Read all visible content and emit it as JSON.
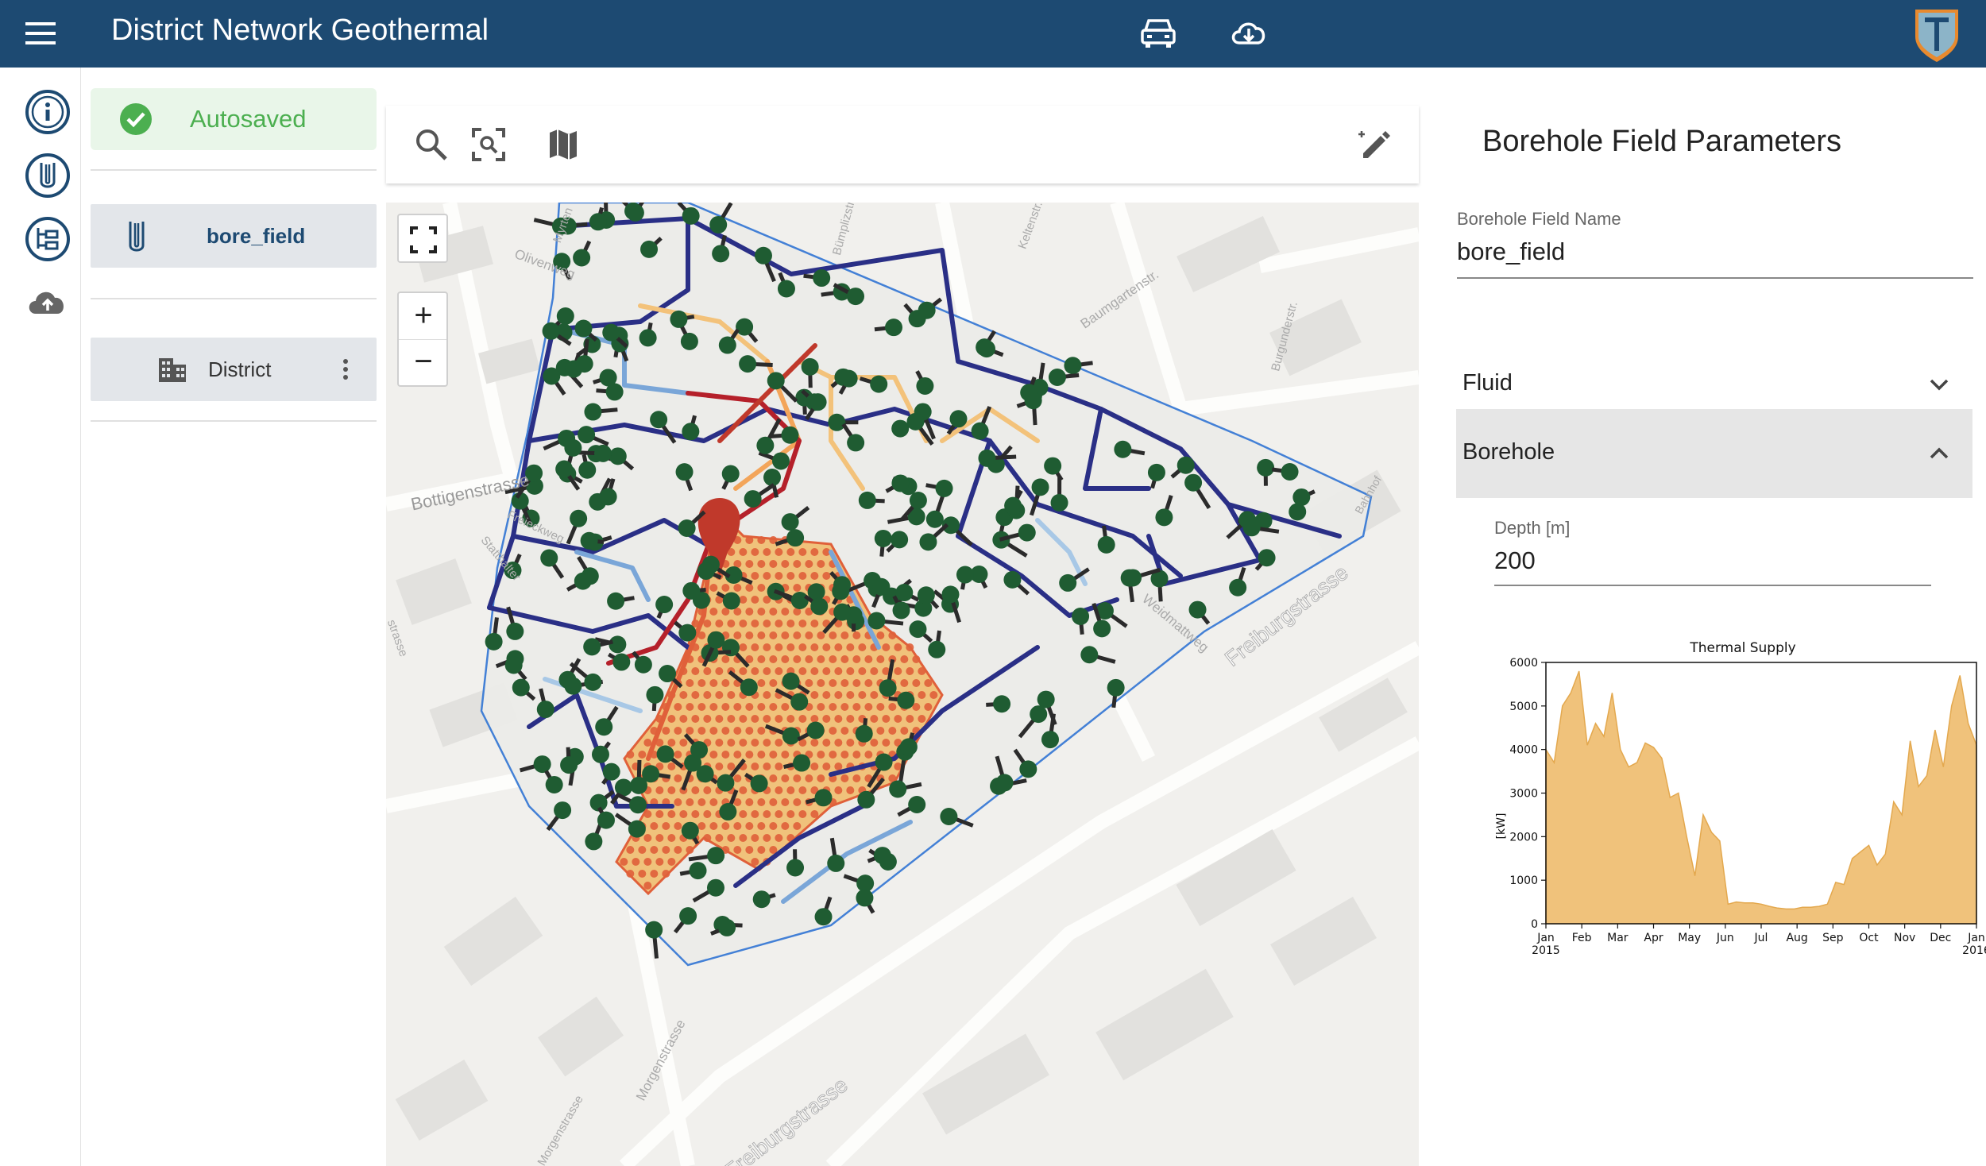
{
  "app": {
    "title": "District Network Geothermal",
    "header_icons": [
      "menu-icon",
      "building-database-icon",
      "cloud-download-icon",
      "app-logo"
    ]
  },
  "rail": {
    "icons": [
      "info-icon",
      "borehole-icon",
      "tree-structure-icon",
      "cloud-upload-icon"
    ]
  },
  "sidebar": {
    "status": "Autosaved",
    "items": [
      {
        "label": "bore_field",
        "icon": "borehole-icon"
      },
      {
        "label": "District",
        "icon": "building-icon"
      }
    ]
  },
  "map_toolbar": {
    "icons": [
      "search-icon",
      "zoom-to-fit-icon",
      "map-layers-icon",
      "edit-pencil-icon"
    ]
  },
  "map": {
    "controls": {
      "zoom_in": "+",
      "zoom_out": "−"
    },
    "street_labels": [
      "Bottigenstrasse",
      "Freiburgstrasse",
      "Freiburgstrasse",
      "Morgenstrasse",
      "Weidmattweg",
      "Olivenweg",
      "Baumgartenstr.",
      "Bümplizstr.",
      "Burgunderstr.",
      "Bahnhof",
      "Statthalter",
      "Freieckweg",
      "Myrten",
      "Keltenstr.",
      "strasse",
      "Morgenstrasse"
    ]
  },
  "panel": {
    "title": "Borehole Field Parameters",
    "name_label": "Borehole Field Name",
    "name_value": "bore_field",
    "sections": [
      {
        "label": "Fluid",
        "expanded": false
      },
      {
        "label": "Borehole",
        "expanded": true
      }
    ],
    "depth_label": "Depth [m]",
    "depth_value": "200"
  },
  "colors": {
    "header": "#1d4a72",
    "autosaved_green": "#4caf50",
    "area_fill": "#f0c27b",
    "network_dark": "#2a2f86",
    "network_red": "#b5202a",
    "borehole_orange": "#e0603a",
    "building_green": "#1f5c32"
  },
  "chart_data": {
    "type": "area",
    "title": "Thermal Supply",
    "ylabel": "[kW]",
    "xlabel": "",
    "ylim": [
      0,
      6000
    ],
    "yticks": [
      "0",
      "1000",
      "2000",
      "3000",
      "4000",
      "5000",
      "6000"
    ],
    "xtick_labels": [
      "Jan\n2015",
      "Feb",
      "Mar",
      "Apr",
      "May",
      "Jun",
      "Jul",
      "Aug",
      "Sep",
      "Oct",
      "Nov",
      "Dec",
      "Jan\n2016"
    ],
    "x_weeks": [
      0,
      1,
      2,
      3,
      4,
      5,
      6,
      7,
      8,
      9,
      10,
      11,
      12,
      13,
      14,
      15,
      16,
      17,
      18,
      19,
      20,
      21,
      22,
      23,
      24,
      25,
      26,
      27,
      28,
      29,
      30,
      31,
      32,
      33,
      34,
      35,
      36,
      37,
      38,
      39,
      40,
      41,
      42,
      43,
      44,
      45,
      46,
      47,
      48,
      49,
      50,
      51,
      52
    ],
    "values": [
      4000,
      3700,
      5000,
      5300,
      5800,
      4100,
      4600,
      4300,
      5300,
      4000,
      3600,
      3700,
      4150,
      4050,
      3800,
      2900,
      3000,
      2000,
      1100,
      2500,
      2100,
      1900,
      450,
      500,
      480,
      480,
      450,
      400,
      360,
      340,
      340,
      380,
      380,
      400,
      450,
      950,
      900,
      1500,
      1650,
      1800,
      1350,
      1600,
      2800,
      2500,
      4200,
      3150,
      3400,
      4450,
      3600,
      5000,
      5700,
      4600,
      4100
    ]
  }
}
